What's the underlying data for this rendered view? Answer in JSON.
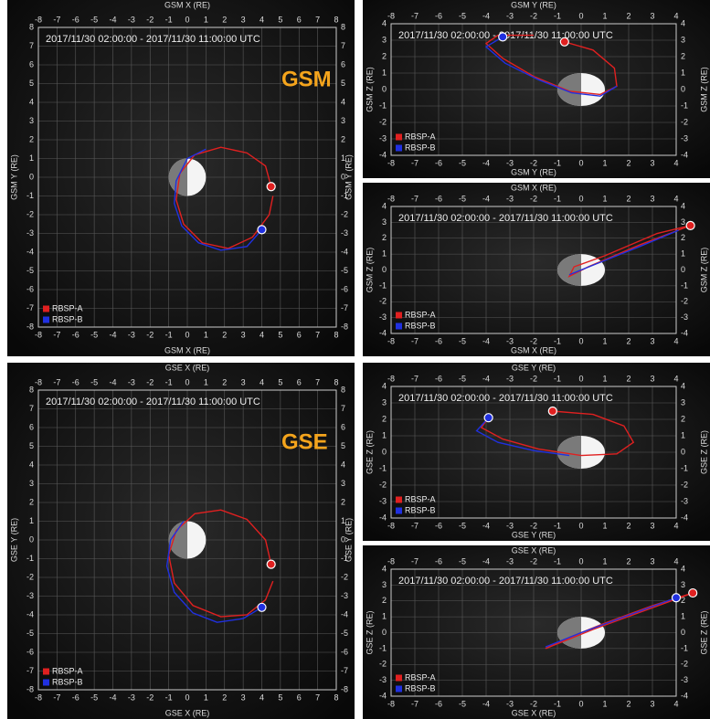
{
  "chart_data": [
    {
      "type": "line",
      "title": "2017/11/30 02:00:00 - 2017/11/30 11:00:00 UTC",
      "annotation": "GSM",
      "x_label": "GSM X (RE)",
      "y_label": "GSM Y (RE)",
      "xlim": [
        -8,
        8
      ],
      "ylim": [
        -8,
        8
      ],
      "xticks": [
        -8,
        -7,
        -6,
        -5,
        -4,
        -3,
        -2,
        -1,
        0,
        1,
        2,
        3,
        4,
        5,
        6,
        7,
        8
      ],
      "yticks": [
        -8,
        -7,
        -6,
        -5,
        -4,
        -3,
        -2,
        -1,
        0,
        1,
        2,
        3,
        4,
        5,
        6,
        7,
        8
      ],
      "grid": true,
      "legend": "lower left",
      "series": [
        {
          "name": "RBSP-A",
          "color": "#e02020",
          "x": [
            4.5,
            4.2,
            3.2,
            1.8,
            0.4,
            -0.4,
            -0.6,
            -0.2,
            0.8,
            2.2,
            3.5,
            4.4,
            4.6
          ],
          "y": [
            -0.5,
            0.6,
            1.3,
            1.6,
            1.2,
            0.2,
            -1.2,
            -2.5,
            -3.5,
            -3.8,
            -3.2,
            -2.0,
            -1.0
          ],
          "position": [
            4.5,
            -0.5
          ]
        },
        {
          "name": "RBSP-B",
          "color": "#2030e0",
          "x": [
            4.0,
            3.2,
            1.8,
            0.6,
            -0.3,
            -0.7,
            -0.6,
            0.0,
            1.0
          ],
          "y": [
            -2.8,
            -3.7,
            -3.9,
            -3.5,
            -2.6,
            -1.4,
            -0.2,
            1.0,
            1.5
          ],
          "position": [
            4.0,
            -2.8
          ]
        }
      ]
    },
    {
      "type": "line",
      "title": "2017/11/30 02:00:00 - 2017/11/30 11:00:00 UTC",
      "x_label": "GSM Y (RE)",
      "y_label": "GSM Z (RE)",
      "xlim": [
        -8,
        4
      ],
      "ylim": [
        -4,
        4
      ],
      "xticks": [
        -8,
        -7,
        -6,
        -5,
        -4,
        -3,
        -2,
        -1,
        0,
        1,
        2,
        3,
        4
      ],
      "yticks": [
        -4,
        -3,
        -2,
        -1,
        0,
        1,
        2,
        3,
        4
      ],
      "grid": true,
      "legend": "lower left",
      "series": [
        {
          "name": "RBSP-A",
          "color": "#e02020",
          "x": [
            -0.7,
            0.5,
            1.4,
            1.5,
            0.8,
            -0.5,
            -2.0,
            -3.3,
            -4.0,
            -3.5,
            -2.0
          ],
          "y": [
            2.9,
            2.4,
            1.3,
            0.2,
            -0.3,
            -0.1,
            0.8,
            1.9,
            2.8,
            3.3,
            3.3
          ],
          "position": [
            -0.7,
            2.9
          ]
        },
        {
          "name": "RBSP-B",
          "color": "#2030e0",
          "x": [
            -3.3,
            -4.0,
            -3.2,
            -1.8,
            -0.4,
            0.8,
            1.5
          ],
          "y": [
            3.2,
            2.6,
            1.6,
            0.6,
            -0.2,
            -0.4,
            0.2
          ],
          "position": [
            -3.3,
            3.2
          ]
        }
      ]
    },
    {
      "type": "line",
      "title": "2017/11/30 02:00:00 - 2017/11/30 11:00:00 UTC",
      "x_label": "GSM X (RE)",
      "y_label": "GSM Z (RE)",
      "xlim": [
        -8,
        4
      ],
      "ylim": [
        -4,
        4
      ],
      "xticks": [
        -8,
        -7,
        -6,
        -5,
        -4,
        -3,
        -2,
        -1,
        0,
        1,
        2,
        3,
        4
      ],
      "yticks": [
        -4,
        -3,
        -2,
        -1,
        0,
        1,
        2,
        3,
        4
      ],
      "grid": true,
      "legend": "lower left",
      "series": [
        {
          "name": "RBSP-A",
          "color": "#e02020",
          "x": [
            4.6,
            3.2,
            1.0,
            -0.3,
            -0.5,
            0.3,
            2.5,
            4.6
          ],
          "y": [
            2.8,
            2.3,
            0.9,
            0.2,
            -0.4,
            0.2,
            1.6,
            2.8
          ],
          "position": [
            4.6,
            2.8
          ]
        },
        {
          "name": "RBSP-B",
          "color": "#2030e0",
          "x": [
            4.1,
            2.5,
            0.5,
            -0.5
          ],
          "y": [
            2.5,
            1.5,
            0.3,
            -0.3
          ]
        }
      ]
    },
    {
      "type": "line",
      "title": "2017/11/30 02:00:00 - 2017/11/30 11:00:00 UTC",
      "annotation": "GSE",
      "x_label": "GSE X (RE)",
      "y_label": "GSE Y (RE)",
      "xlim": [
        -8,
        8
      ],
      "ylim": [
        -8,
        8
      ],
      "xticks": [
        -8,
        -7,
        -6,
        -5,
        -4,
        -3,
        -2,
        -1,
        0,
        1,
        2,
        3,
        4,
        5,
        6,
        7,
        8
      ],
      "yticks": [
        -8,
        -7,
        -6,
        -5,
        -4,
        -3,
        -2,
        -1,
        0,
        1,
        2,
        3,
        4,
        5,
        6,
        7,
        8
      ],
      "grid": true,
      "legend": "lower left",
      "series": [
        {
          "name": "RBSP-A",
          "color": "#e02020",
          "x": [
            4.5,
            4.2,
            3.2,
            1.8,
            0.4,
            -0.6,
            -1.0,
            -0.7,
            0.3,
            1.8,
            3.2,
            4.2,
            4.6
          ],
          "y": [
            -1.3,
            0.0,
            1.1,
            1.6,
            1.4,
            0.5,
            -0.8,
            -2.3,
            -3.5,
            -4.1,
            -4.0,
            -3.2,
            -2.2
          ],
          "position": [
            4.5,
            -1.3
          ]
        },
        {
          "name": "RBSP-B",
          "color": "#2030e0",
          "x": [
            4.0,
            3.0,
            1.6,
            0.3,
            -0.7,
            -1.1,
            -0.9,
            -0.2
          ],
          "y": [
            -3.6,
            -4.2,
            -4.4,
            -3.9,
            -2.8,
            -1.4,
            0.0,
            1.0
          ],
          "position": [
            4.0,
            -3.6
          ]
        }
      ]
    },
    {
      "type": "line",
      "title": "2017/11/30 02:00:00 - 2017/11/30 11:00:00 UTC",
      "x_label": "GSE Y (RE)",
      "y_label": "GSE Z (RE)",
      "xlim": [
        -8,
        4
      ],
      "ylim": [
        -4,
        4
      ],
      "xticks": [
        -8,
        -7,
        -6,
        -5,
        -4,
        -3,
        -2,
        -1,
        0,
        1,
        2,
        3,
        4
      ],
      "yticks": [
        -4,
        -3,
        -2,
        -1,
        0,
        1,
        2,
        3,
        4
      ],
      "grid": true,
      "legend": "lower left",
      "series": [
        {
          "name": "RBSP-A",
          "color": "#e02020",
          "x": [
            -1.2,
            0.5,
            1.8,
            2.2,
            1.5,
            0.0,
            -1.8,
            -3.3,
            -4.2,
            -3.9
          ],
          "y": [
            2.5,
            2.3,
            1.6,
            0.6,
            -0.1,
            -0.2,
            0.2,
            0.8,
            1.5,
            2.1
          ],
          "position": [
            -1.2,
            2.5
          ]
        },
        {
          "name": "RBSP-B",
          "color": "#2030e0",
          "x": [
            -3.9,
            -4.4,
            -3.5,
            -2.0,
            -0.5
          ],
          "y": [
            2.1,
            1.3,
            0.6,
            0.1,
            -0.2
          ],
          "position": [
            -3.9,
            2.1
          ]
        }
      ]
    },
    {
      "type": "line",
      "title": "2017/11/30 02:00:00 - 2017/11/30 11:00:00 UTC",
      "x_label": "GSE X (RE)",
      "y_label": "GSE Z (RE)",
      "xlim": [
        -8,
        4
      ],
      "ylim": [
        -4,
        4
      ],
      "xticks": [
        -8,
        -7,
        -6,
        -5,
        -4,
        -3,
        -2,
        -1,
        0,
        1,
        2,
        3,
        4
      ],
      "yticks": [
        -4,
        -3,
        -2,
        -1,
        0,
        1,
        2,
        3,
        4
      ],
      "grid": true,
      "legend": "lower left",
      "series": [
        {
          "name": "RBSP-A",
          "color": "#e02020",
          "x": [
            4.7,
            3.0,
            1.0,
            -0.5,
            -1.5,
            0.5,
            2.5,
            4.7
          ],
          "y": [
            2.5,
            1.7,
            0.6,
            -0.3,
            -1.0,
            0.2,
            1.3,
            2.5
          ],
          "position": [
            4.7,
            2.5
          ]
        },
        {
          "name": "RBSP-B",
          "color": "#2030e0",
          "x": [
            4.0,
            2.0,
            0.0,
            -1.5
          ],
          "y": [
            2.2,
            1.1,
            0.0,
            -0.9
          ],
          "position": [
            4.0,
            2.2
          ]
        }
      ]
    }
  ]
}
